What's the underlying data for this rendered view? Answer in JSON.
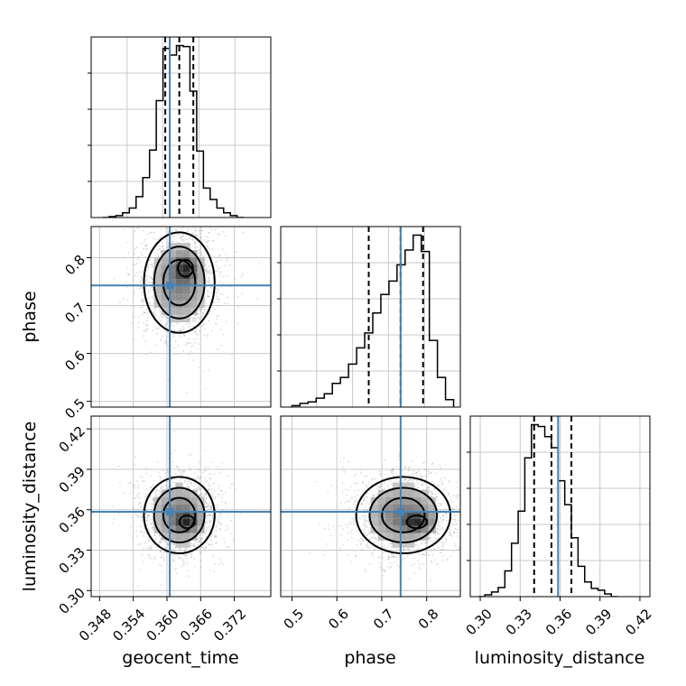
{
  "chart_data": {
    "type": "corner",
    "parameters": [
      "geocent_time",
      "phase",
      "luminosity_distance"
    ],
    "truths": {
      "geocent_time": 0.3605,
      "phase": 0.742,
      "luminosity_distance": 0.3585
    },
    "colors": {
      "truth": "#4682b4",
      "hist": "#000000",
      "grid": "#c8c8c8",
      "points": "#9a9a9a"
    },
    "grid": true,
    "panels": [
      {
        "id": "hist-geocent_time",
        "type": "histogram",
        "param": "geocent_time",
        "xlim": [
          0.3465,
          0.3785
        ],
        "quantiles": [
          0.3597,
          0.3622,
          0.3647
        ],
        "bin_edges": [
          0.3485,
          0.3497,
          0.3509,
          0.3521,
          0.3533,
          0.3545,
          0.3557,
          0.3569,
          0.3581,
          0.3593,
          0.3605,
          0.3617,
          0.3629,
          0.3641,
          0.3653,
          0.3665,
          0.3677,
          0.3689,
          0.3701,
          0.3713,
          0.3725,
          0.3737
        ],
        "counts": [
          0,
          1,
          2,
          5,
          10,
          22,
          42,
          71,
          123,
          178,
          171,
          181,
          180,
          133,
          70,
          31,
          19,
          10,
          5,
          2,
          0
        ]
      },
      {
        "id": "scatter-geocent_time-phase",
        "type": "contour2d",
        "x": "geocent_time",
        "y": "phase",
        "xlim": [
          0.3465,
          0.3785
        ],
        "ylim": [
          0.488,
          0.865
        ],
        "xticks": [
          0.348,
          0.354,
          0.36,
          0.366,
          0.372
        ],
        "yticks": [
          0.5,
          0.6,
          0.7,
          0.8
        ],
        "mean": [
          0.3622,
          0.748
        ],
        "sd": [
          0.003,
          0.05
        ],
        "peak": [
          0.3633,
          0.778
        ]
      },
      {
        "id": "hist-phase",
        "type": "histogram",
        "param": "phase",
        "xlim": [
          0.475,
          0.875
        ],
        "quantiles": [
          0.671,
          0.742,
          0.792
        ],
        "bin_edges": [
          0.5,
          0.518,
          0.536,
          0.554,
          0.572,
          0.59,
          0.608,
          0.626,
          0.644,
          0.662,
          0.68,
          0.698,
          0.716,
          0.734,
          0.752,
          0.77,
          0.788,
          0.806,
          0.824,
          0.842,
          0.86
        ],
        "counts": [
          2,
          5,
          7,
          12,
          18,
          32,
          40,
          58,
          80,
          100,
          127,
          152,
          170,
          192,
          212,
          232,
          210,
          90,
          40,
          10
        ]
      },
      {
        "id": "scatter-geocent_time-luminosity_distance",
        "type": "contour2d",
        "x": "geocent_time",
        "y": "luminosity_distance",
        "xlim": [
          0.3465,
          0.3785
        ],
        "ylim": [
          0.2955,
          0.4295
        ],
        "xticks": [
          0.348,
          0.354,
          0.36,
          0.366,
          0.372
        ],
        "yticks": [
          0.3,
          0.33,
          0.36,
          0.39,
          0.42
        ],
        "xticklabels": [
          "0.348",
          "0.354",
          "0.360",
          "0.366",
          "0.372"
        ],
        "yticklabels": [
          "0.30",
          "0.33",
          "0.36",
          "0.39",
          "0.42"
        ],
        "mean": [
          0.3622,
          0.356
        ],
        "sd": [
          0.003,
          0.0135
        ],
        "peak": [
          0.3636,
          0.351
        ]
      },
      {
        "id": "scatter-phase-luminosity_distance",
        "type": "contour2d",
        "x": "phase",
        "y": "luminosity_distance",
        "xlim": [
          0.475,
          0.875
        ],
        "ylim": [
          0.2955,
          0.4295
        ],
        "xticks": [
          0.5,
          0.6,
          0.7,
          0.8
        ],
        "mean": [
          0.748,
          0.356
        ],
        "sd": [
          0.05,
          0.0135
        ],
        "peak": [
          0.778,
          0.351
        ]
      },
      {
        "id": "hist-luminosity_distance",
        "type": "histogram",
        "param": "luminosity_distance",
        "xlim": [
          0.2925,
          0.4275
        ],
        "quantiles": [
          0.3405,
          0.3535,
          0.3685
        ],
        "xticks": [
          0.3,
          0.33,
          0.36,
          0.39,
          0.42
        ],
        "xticklabels": [
          "0.30",
          "0.33",
          "0.36",
          "0.39",
          "0.42"
        ],
        "bin_edges": [
          0.2985,
          0.3035,
          0.3085,
          0.3135,
          0.3185,
          0.3235,
          0.3285,
          0.3335,
          0.3385,
          0.3435,
          0.3485,
          0.3535,
          0.3585,
          0.3635,
          0.3685,
          0.3735,
          0.3785,
          0.3835,
          0.3885,
          0.3935,
          0.3985,
          0.4035
        ],
        "counts": [
          0,
          2,
          5,
          10,
          28,
          58,
          93,
          151,
          187,
          185,
          174,
          162,
          126,
          100,
          64,
          33,
          16,
          9,
          7,
          3,
          0
        ]
      }
    ]
  }
}
